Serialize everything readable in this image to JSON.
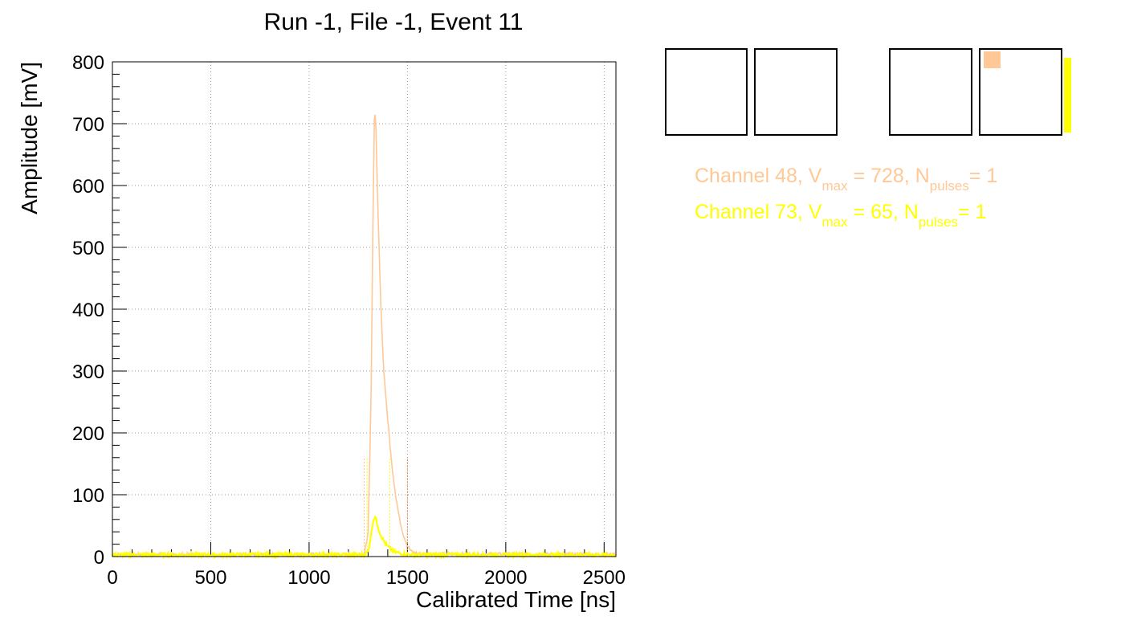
{
  "chart_data": {
    "type": "line",
    "title": "Run -1, File -1, Event 11",
    "xlabel": "Calibrated Time [ns]",
    "ylabel": "Amplitude [mV]",
    "xlim": [
      0,
      2560
    ],
    "ylim": [
      0,
      800
    ],
    "x_ticks": [
      0,
      500,
      1000,
      1500,
      2000,
      2500
    ],
    "y_ticks": [
      0,
      100,
      200,
      300,
      400,
      500,
      600,
      700,
      800
    ],
    "grid": true,
    "series": [
      {
        "name": "Channel 48",
        "color": "#ffc896",
        "x": [
          0,
          1200,
          1280,
          1300,
          1315,
          1325,
          1333,
          1340,
          1350,
          1365,
          1380,
          1400,
          1420,
          1440,
          1460,
          1480,
          1500,
          1520,
          1560,
          2560
        ],
        "y": [
          3,
          3,
          4,
          40,
          250,
          560,
          728,
          690,
          560,
          400,
          300,
          220,
          150,
          100,
          60,
          35,
          18,
          8,
          4,
          3
        ]
      },
      {
        "name": "Channel 73",
        "color": "#ffff00",
        "x": [
          0,
          1280,
          1300,
          1315,
          1325,
          1335,
          1345,
          1360,
          1380,
          1400,
          1430,
          1470,
          1520,
          2560
        ],
        "y": [
          3,
          3,
          8,
          35,
          58,
          65,
          55,
          38,
          25,
          16,
          8,
          5,
          3,
          3
        ]
      }
    ],
    "markers": [
      {
        "x": 1280,
        "color": "#ffc896",
        "y_top": 160
      },
      {
        "x": 1500,
        "color": "#ff9650",
        "y_top": 160
      },
      {
        "x": 1295,
        "color": "#ffff00",
        "y_top": 160
      },
      {
        "x": 1410,
        "color": "#ffff00",
        "y_top": 160
      }
    ]
  },
  "legend": {
    "entry1": {
      "prefix": "Channel 48, V",
      "sub1": "max",
      "mid": " = 728, N",
      "sub2": "pulses",
      "suffix": "= 1",
      "color": "#ffc896"
    },
    "entry2": {
      "prefix": "Channel 73, V",
      "sub1": "max",
      "mid": " = 65, N",
      "sub2": "pulses",
      "suffix": "= 1",
      "color": "#ffff00"
    }
  },
  "detector": {
    "box_outline_color": "#000000",
    "hit_color_ch48": "#ffc896",
    "hit_color_ch73": "#ffff00"
  }
}
